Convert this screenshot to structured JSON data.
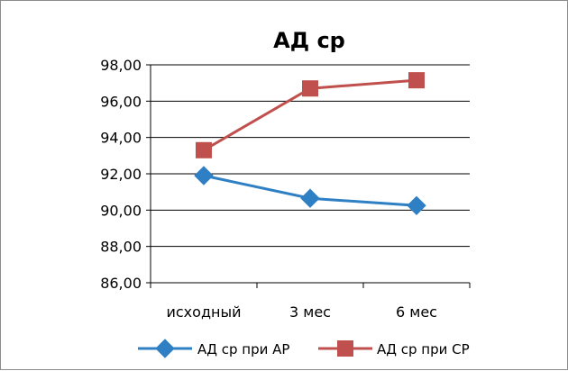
{
  "chart_data": {
    "type": "line",
    "title": "АД ср",
    "xlabel": "",
    "ylabel": "",
    "categories": [
      "исходный",
      "3 мес",
      "6 мес"
    ],
    "ylim": [
      86,
      98
    ],
    "ytick_step": 2,
    "ytick_labels": [
      "86,00",
      "88,00",
      "90,00",
      "92,00",
      "94,00",
      "96,00",
      "98,00"
    ],
    "grid": true,
    "legend_position": "bottom",
    "series": [
      {
        "name": "АД ср при АР",
        "values": [
          91.9,
          90.65,
          90.25
        ],
        "color": "#2e7fc4",
        "marker": "diamond"
      },
      {
        "name": "АД ср при СР",
        "values": [
          93.3,
          96.7,
          97.15
        ],
        "color": "#c0504d",
        "marker": "square"
      }
    ]
  }
}
